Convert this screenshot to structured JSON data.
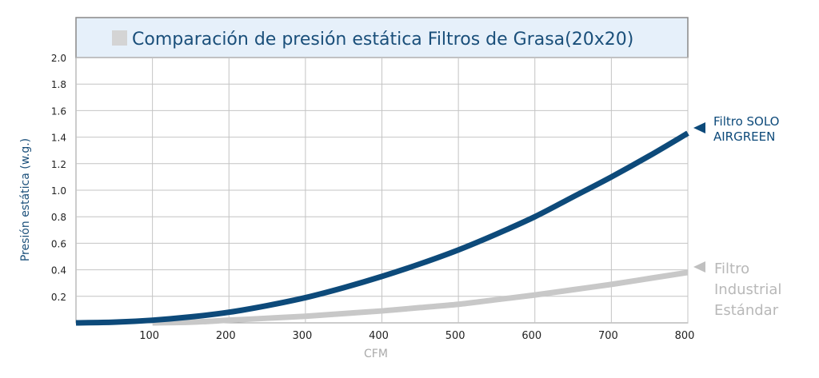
{
  "chart_data": {
    "type": "line",
    "title": "Comparación de presión estática Filtros de Grasa(20x20)",
    "xlabel": "CFM",
    "ylabel": "Presión estática (w.g.)",
    "xlim": [
      0,
      800
    ],
    "ylim": [
      0,
      2.0
    ],
    "x_ticks": [
      "100",
      "200",
      "300",
      "400",
      "500",
      "600",
      "700",
      "800"
    ],
    "y_ticks": [
      "0.2",
      "0.4",
      "0.6",
      "0.8",
      "1.0",
      "1.2",
      "1.4",
      "1.6",
      "1.8",
      "2.0"
    ],
    "grid": true,
    "legend_placement": "top-left",
    "series": [
      {
        "name": "Filtro SOLO AIRGREEN",
        "color": "#0d4a7a",
        "x": [
          0,
          50,
          100,
          150,
          200,
          250,
          300,
          350,
          400,
          450,
          500,
          550,
          600,
          650,
          700,
          750,
          800
        ],
        "y": [
          0,
          0.005,
          0.02,
          0.045,
          0.08,
          0.13,
          0.19,
          0.265,
          0.35,
          0.445,
          0.55,
          0.67,
          0.8,
          0.95,
          1.1,
          1.26,
          1.43
        ]
      },
      {
        "name": "Filtro Industrial Estándar",
        "color": "#c8c8c8",
        "x": [
          100,
          150,
          200,
          250,
          300,
          350,
          400,
          450,
          500,
          550,
          600,
          650,
          700,
          750,
          800
        ],
        "y": [
          0,
          0.005,
          0.02,
          0.035,
          0.05,
          0.07,
          0.09,
          0.115,
          0.14,
          0.175,
          0.21,
          0.25,
          0.29,
          0.335,
          0.38
        ]
      }
    ]
  },
  "labels": {
    "series1_line1": "Filtro SOLO",
    "series1_line2": "AIRGREEN",
    "series2_line1": "Filtro",
    "series2_line2": "Industrial",
    "series2_line3": "Estándar"
  }
}
